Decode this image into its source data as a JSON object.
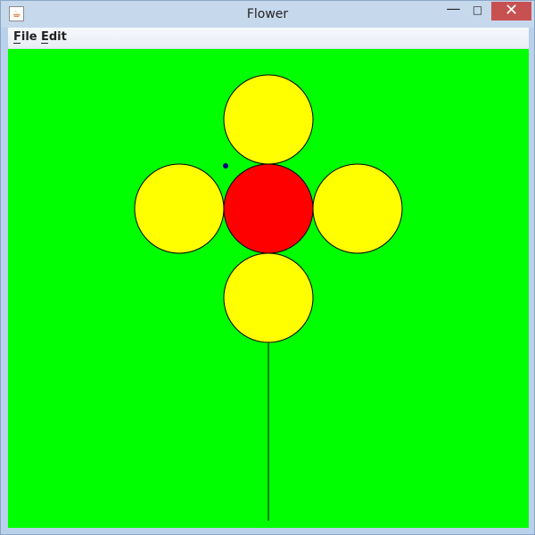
{
  "window": {
    "title": "Flower",
    "icon": "java-cup-icon",
    "controls": {
      "minimize_icon": "minimize-icon",
      "minimize_glyph": "—",
      "maximize_icon": "maximize-icon",
      "maximize_glyph": "□",
      "close_icon": "close-icon",
      "close_glyph": "✕"
    }
  },
  "menu": {
    "items": [
      {
        "label": "File"
      },
      {
        "label": "Edit"
      }
    ]
  },
  "colors": {
    "background": "#00ff00",
    "petals": "#ffff00",
    "center": "#ff0000",
    "outline": "#000000",
    "cursor_dot": "#000080"
  }
}
